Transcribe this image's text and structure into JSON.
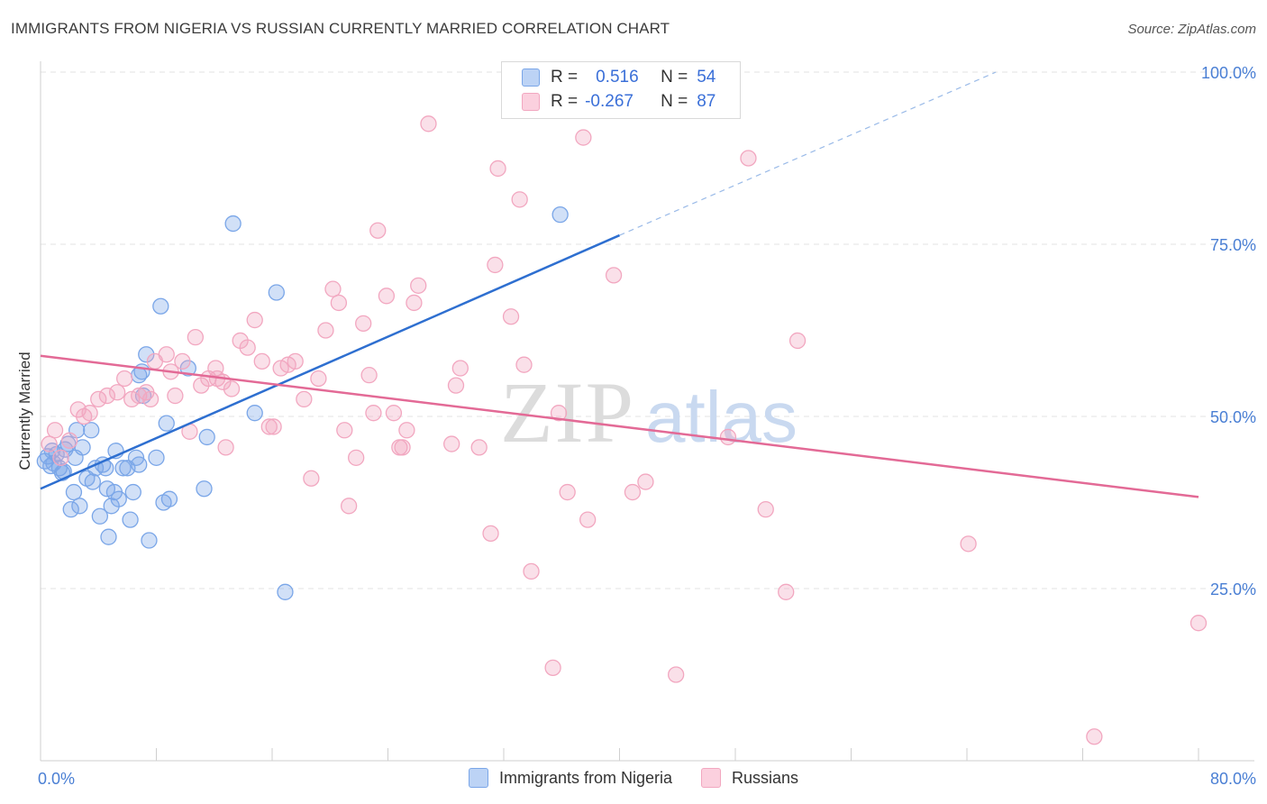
{
  "title": "IMMIGRANTS FROM NIGERIA VS RUSSIAN CURRENTLY MARRIED CORRELATION CHART",
  "source": "Source: ZipAtlas.com",
  "watermark": {
    "zip": "ZIP",
    "atlas": "atlas"
  },
  "legend_top": {
    "rows": [
      {
        "r_label": "R =",
        "r_value": "0.516",
        "n_label": "N =",
        "n_value": "54"
      },
      {
        "r_label": "R =",
        "r_value": "-0.267",
        "n_label": "N =",
        "n_value": "87"
      }
    ]
  },
  "legend_bottom": [
    "Immigrants from Nigeria",
    "Russians"
  ],
  "chart_data": {
    "type": "scatter",
    "ylabel": "Currently Married",
    "x_tick_labels": [
      "0.0%",
      "80.0%"
    ],
    "y_tick_labels": [
      "100.0%",
      "75.0%",
      "50.0%",
      "25.0%"
    ],
    "xlim": [
      0,
      80
    ],
    "ylim": [
      0,
      100
    ],
    "y_ticks": [
      100,
      75,
      50,
      25
    ],
    "grid": true,
    "colors": {
      "nigeria": "#7aa6e8",
      "nigeria_line": "#2e6fd0",
      "russians": "#f2a7c0",
      "russians_line": "#e36a96",
      "tick_text": "#4a7fd4"
    },
    "series": [
      {
        "name": "Immigrants from Nigeria",
        "trend": {
          "x0": 0,
          "y0": 39.5,
          "x1": 40,
          "y1": 76.3,
          "dashed_to_x": 66,
          "dashed_to_y": 100
        },
        "points": [
          [
            0.3,
            43.5
          ],
          [
            0.5,
            44.2
          ],
          [
            0.7,
            42.8
          ],
          [
            0.9,
            43.2
          ],
          [
            1.1,
            44.5
          ],
          [
            1.3,
            42.5
          ],
          [
            1.5,
            41.8
          ],
          [
            1.7,
            45.2
          ],
          [
            1.9,
            46
          ],
          [
            2.1,
            36.5
          ],
          [
            2.3,
            39
          ],
          [
            2.5,
            48
          ],
          [
            2.7,
            37
          ],
          [
            2.9,
            45.5
          ],
          [
            3.2,
            41
          ],
          [
            3.5,
            48
          ],
          [
            3.8,
            42.5
          ],
          [
            4.1,
            35.5
          ],
          [
            4.3,
            43
          ],
          [
            4.5,
            42.5
          ],
          [
            4.6,
            39.5
          ],
          [
            4.7,
            32.5
          ],
          [
            4.9,
            37
          ],
          [
            5.1,
            39
          ],
          [
            5.2,
            45
          ],
          [
            5.4,
            38
          ],
          [
            5.7,
            42.5
          ],
          [
            6.0,
            42.5
          ],
          [
            6.2,
            35
          ],
          [
            6.4,
            39
          ],
          [
            6.6,
            44
          ],
          [
            6.8,
            43
          ],
          [
            7.0,
            56.5
          ],
          [
            7.1,
            53
          ],
          [
            7.3,
            59
          ],
          [
            7.5,
            32
          ],
          [
            8.0,
            44
          ],
          [
            8.3,
            66
          ],
          [
            8.5,
            37.5
          ],
          [
            8.7,
            49
          ],
          [
            8.9,
            38
          ],
          [
            10.2,
            57
          ],
          [
            11.3,
            39.5
          ],
          [
            11.5,
            47
          ],
          [
            13.3,
            78
          ],
          [
            14.8,
            50.5
          ],
          [
            16.3,
            68
          ],
          [
            16.9,
            24.5
          ],
          [
            6.8,
            56
          ],
          [
            0.8,
            45
          ],
          [
            1.6,
            42
          ],
          [
            2.4,
            44
          ],
          [
            3.6,
            40.5
          ],
          [
            35.9,
            79.3
          ]
        ]
      },
      {
        "name": "Russians",
        "trend": {
          "x0": 0,
          "y0": 58.8,
          "x1": 80,
          "y1": 38.3
        },
        "points": [
          [
            0.6,
            46
          ],
          [
            1.0,
            48
          ],
          [
            1.4,
            44
          ],
          [
            2.0,
            46.5
          ],
          [
            2.6,
            51
          ],
          [
            3.0,
            50
          ],
          [
            3.4,
            50.5
          ],
          [
            4.0,
            52.5
          ],
          [
            4.6,
            53
          ],
          [
            5.3,
            53.5
          ],
          [
            5.8,
            55.5
          ],
          [
            6.3,
            52.5
          ],
          [
            6.8,
            53
          ],
          [
            7.3,
            53.5
          ],
          [
            7.9,
            58
          ],
          [
            8.7,
            59
          ],
          [
            9.3,
            53
          ],
          [
            9.8,
            58
          ],
          [
            10.3,
            47.8
          ],
          [
            10.7,
            61.5
          ],
          [
            11.1,
            54.5
          ],
          [
            11.6,
            55.5
          ],
          [
            12.1,
            57
          ],
          [
            12.6,
            55
          ],
          [
            12.8,
            45.5
          ],
          [
            13.2,
            54
          ],
          [
            13.8,
            61
          ],
          [
            14.3,
            60
          ],
          [
            14.8,
            64
          ],
          [
            15.3,
            58
          ],
          [
            15.8,
            48.5
          ],
          [
            16.1,
            48.5
          ],
          [
            16.6,
            57
          ],
          [
            17.1,
            57.5
          ],
          [
            17.6,
            58
          ],
          [
            18.2,
            52.5
          ],
          [
            18.7,
            41
          ],
          [
            19.2,
            55.5
          ],
          [
            19.7,
            62.5
          ],
          [
            20.2,
            68.5
          ],
          [
            20.6,
            66.5
          ],
          [
            21.0,
            48
          ],
          [
            21.3,
            37
          ],
          [
            21.8,
            44
          ],
          [
            22.3,
            63.5
          ],
          [
            22.7,
            56
          ],
          [
            23.0,
            50.5
          ],
          [
            23.3,
            77
          ],
          [
            23.9,
            67.5
          ],
          [
            24.4,
            50.5
          ],
          [
            24.8,
            45.5
          ],
          [
            25.3,
            48
          ],
          [
            25.8,
            66.5
          ],
          [
            26.1,
            69
          ],
          [
            26.8,
            92.5
          ],
          [
            28.4,
            46
          ],
          [
            28.7,
            54.5
          ],
          [
            29.0,
            57
          ],
          [
            30.3,
            45.5
          ],
          [
            31.1,
            33
          ],
          [
            31.4,
            72
          ],
          [
            31.6,
            86
          ],
          [
            32.5,
            64.5
          ],
          [
            33.1,
            81.5
          ],
          [
            33.4,
            57.5
          ],
          [
            33.9,
            27.5
          ],
          [
            35.4,
            13.5
          ],
          [
            35.8,
            50.5
          ],
          [
            36.4,
            39
          ],
          [
            37.5,
            90.5
          ],
          [
            37.8,
            35
          ],
          [
            39.6,
            70.5
          ],
          [
            40.9,
            39
          ],
          [
            41.8,
            40.5
          ],
          [
            43.9,
            12.5
          ],
          [
            47.5,
            47
          ],
          [
            48.9,
            87.5
          ],
          [
            50.1,
            36.5
          ],
          [
            51.5,
            24.5
          ],
          [
            52.3,
            61
          ],
          [
            64.1,
            31.5
          ],
          [
            72.8,
            3.5
          ],
          [
            80.0,
            20
          ],
          [
            12.2,
            55.5
          ],
          [
            7.6,
            52.5
          ],
          [
            9.0,
            56.5
          ],
          [
            25.0,
            45.5
          ]
        ]
      }
    ]
  }
}
